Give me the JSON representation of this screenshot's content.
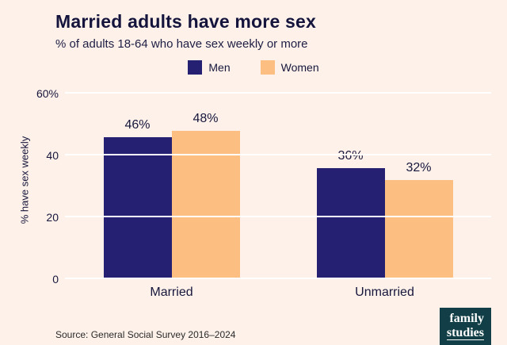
{
  "header": {
    "title": "Married adults have more sex",
    "subtitle": "% of adults 18-64 who have sex weekly or more"
  },
  "legend": [
    {
      "label": "Men",
      "color": "#262073"
    },
    {
      "label": "Women",
      "color": "#fcbe81"
    }
  ],
  "chart_data": {
    "type": "bar",
    "categories": [
      "Married",
      "Unmarried"
    ],
    "series": [
      {
        "name": "Men",
        "color": "#262073",
        "values": [
          46,
          36
        ]
      },
      {
        "name": "Women",
        "color": "#fcbe81",
        "values": [
          48,
          32
        ]
      }
    ],
    "ylabel": "% have sex weekly",
    "ylim": [
      0,
      60
    ],
    "yticks": [
      {
        "value": 60,
        "label": "60%"
      },
      {
        "value": 40,
        "label": "40"
      },
      {
        "value": 20,
        "label": "20"
      },
      {
        "value": 0,
        "label": "0"
      }
    ],
    "value_suffix": "%",
    "grid": true,
    "legend_position": "top"
  },
  "footer": {
    "source": "Source: General Social Survey 2016–2024",
    "logo_line1": "family",
    "logo_line2": "studies"
  }
}
